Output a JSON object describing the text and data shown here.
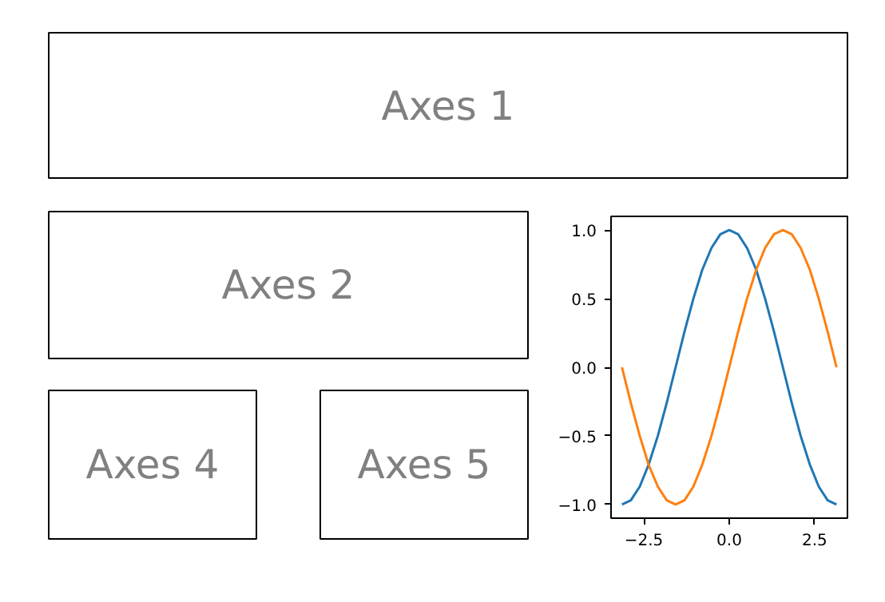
{
  "chart_data": [
    {
      "type": "other",
      "annotations": [
        "Axes 1"
      ]
    },
    {
      "type": "other",
      "annotations": [
        "Axes 2"
      ]
    },
    {
      "type": "line",
      "x": [
        -3.14,
        -2.88,
        -2.62,
        -2.36,
        -2.09,
        -1.83,
        -1.57,
        -1.31,
        -1.05,
        -0.79,
        -0.52,
        -0.26,
        0,
        0.26,
        0.52,
        0.79,
        1.05,
        1.31,
        1.57,
        1.83,
        2.09,
        2.36,
        2.62,
        2.88,
        3.14
      ],
      "series": [
        {
          "color": "#1f77b4",
          "values": [
            -1,
            -0.97,
            -0.87,
            -0.71,
            -0.5,
            -0.26,
            0,
            0.26,
            0.5,
            0.71,
            0.87,
            0.97,
            1,
            0.97,
            0.87,
            0.71,
            0.5,
            0.26,
            0,
            -0.26,
            -0.5,
            -0.71,
            -0.87,
            -0.97,
            -1
          ]
        },
        {
          "color": "#ff7f0e",
          "values": [
            0,
            -0.26,
            -0.5,
            -0.71,
            -0.87,
            -0.97,
            -1,
            -0.97,
            -0.87,
            -0.71,
            -0.5,
            -0.26,
            0,
            0.26,
            0.5,
            0.71,
            0.87,
            0.97,
            1,
            0.97,
            0.87,
            0.71,
            0.5,
            0.26,
            0
          ]
        }
      ],
      "xlim": [
        -3.46,
        3.46
      ],
      "ylim": [
        -1.1,
        1.1
      ],
      "xticks": [
        {
          "value": -2.5,
          "label": "−2.5"
        },
        {
          "value": 0,
          "label": "0.0"
        },
        {
          "value": 2.5,
          "label": "2.5"
        }
      ],
      "yticks": [
        {
          "value": -1,
          "label": "−1.0"
        },
        {
          "value": -0.5,
          "label": "−0.5"
        },
        {
          "value": 0,
          "label": "0.0"
        },
        {
          "value": 0.5,
          "label": "0.5"
        },
        {
          "value": 1,
          "label": "1.0"
        }
      ]
    },
    {
      "type": "other",
      "annotations": [
        "Axes 4"
      ]
    },
    {
      "type": "other",
      "annotations": [
        "Axes 5"
      ]
    }
  ]
}
